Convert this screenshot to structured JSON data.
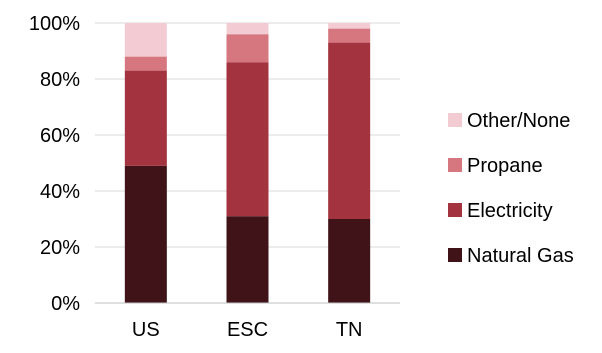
{
  "chart_data": {
    "type": "bar",
    "stacked": true,
    "percent": true,
    "categories": [
      "US",
      "ESC",
      "TN"
    ],
    "series": [
      {
        "name": "Natural Gas",
        "color": "#3f1318",
        "values": [
          49,
          31,
          30
        ]
      },
      {
        "name": "Electricity",
        "color": "#a3333f",
        "values": [
          34,
          55,
          63
        ]
      },
      {
        "name": "Propane",
        "color": "#d67780",
        "values": [
          5,
          10,
          5
        ]
      },
      {
        "name": "Other/None",
        "color": "#f2ccd2",
        "values": [
          12,
          4,
          2
        ]
      }
    ],
    "ylim": [
      0,
      100
    ],
    "yticks": [
      "0%",
      "20%",
      "40%",
      "60%",
      "80%",
      "100%"
    ],
    "title": "",
    "xlabel": "",
    "ylabel": "",
    "grid": true,
    "legend": "right"
  }
}
